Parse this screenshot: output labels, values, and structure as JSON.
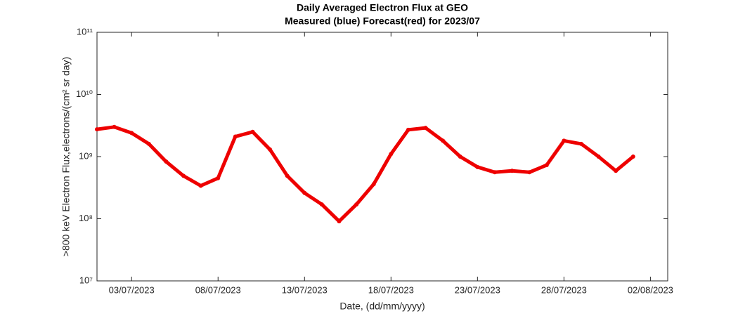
{
  "chart_data": {
    "type": "line",
    "title": "Daily Averaged Electron Flux at GEO",
    "subtitle": "Measured (blue) Forecast(red) for 2023/07",
    "xlabel": "Date, (dd/mm/yyyy)",
    "ylabel": ">800 keV Electron Flux,electrons/(cm² sr day)",
    "x": [
      "2023-07-01",
      "2023-07-02",
      "2023-07-03",
      "2023-07-04",
      "2023-07-05",
      "2023-07-06",
      "2023-07-07",
      "2023-07-08",
      "2023-07-09",
      "2023-07-10",
      "2023-07-11",
      "2023-07-12",
      "2023-07-13",
      "2023-07-14",
      "2023-07-15",
      "2023-07-16",
      "2023-07-17",
      "2023-07-18",
      "2023-07-19",
      "2023-07-20",
      "2023-07-21",
      "2023-07-22",
      "2023-07-23",
      "2023-07-24",
      "2023-07-25",
      "2023-07-26",
      "2023-07-27",
      "2023-07-28",
      "2023-07-29",
      "2023-07-30",
      "2023-07-31",
      "2023-08-01"
    ],
    "series": [
      {
        "name": "Forecast",
        "color": "#ee0000",
        "values": [
          2750000000,
          3000000000,
          2400000000,
          1600000000,
          830000000,
          490000000,
          340000000,
          450000000,
          2100000000,
          2500000000,
          1300000000,
          490000000,
          260000000,
          170000000,
          91000000,
          170000000,
          360000000,
          1100000000,
          2700000000,
          2900000000,
          1800000000,
          1000000000,
          680000000,
          560000000,
          590000000,
          560000000,
          730000000,
          1800000000,
          1600000000,
          1000000000,
          590000000,
          1000000000
        ]
      }
    ],
    "xlim": [
      "2023-07-01",
      "2023-08-03"
    ],
    "xticks": [
      {
        "value": "2023-07-03",
        "label": "03/07/2023"
      },
      {
        "value": "2023-07-08",
        "label": "08/07/2023"
      },
      {
        "value": "2023-07-13",
        "label": "13/07/2023"
      },
      {
        "value": "2023-07-18",
        "label": "18/07/2023"
      },
      {
        "value": "2023-07-23",
        "label": "23/07/2023"
      },
      {
        "value": "2023-07-28",
        "label": "28/07/2023"
      },
      {
        "value": "2023-08-02",
        "label": "02/08/2023"
      }
    ],
    "ylim": [
      10000000,
      100000000000
    ],
    "yticks": [
      {
        "value": 10000000,
        "label": "10⁷"
      },
      {
        "value": 100000000,
        "label": "10⁸"
      },
      {
        "value": 1000000000,
        "label": "10⁹"
      },
      {
        "value": 10000000000,
        "label": "10¹⁰"
      },
      {
        "value": 100000000000,
        "label": "10¹¹"
      }
    ],
    "ylog": true,
    "grid": false
  }
}
